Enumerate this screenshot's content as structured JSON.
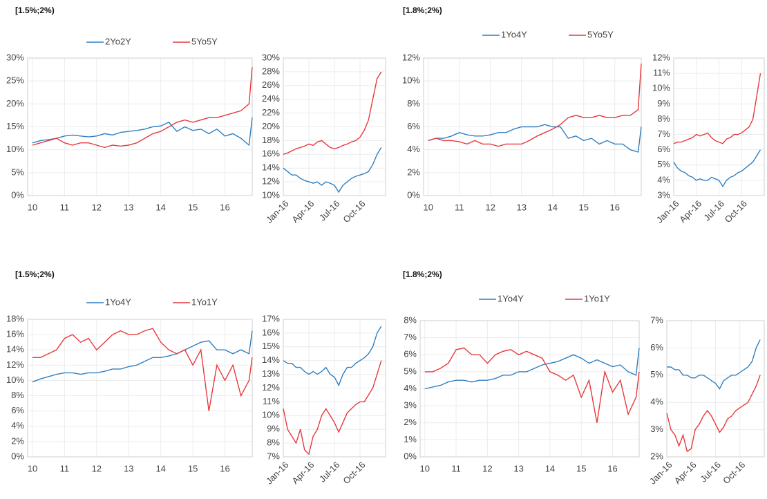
{
  "chart_data": [
    {
      "type": "line",
      "title": "[1.5%;2%)",
      "x": [
        10,
        10.25,
        10.5,
        10.75,
        11,
        11.25,
        11.5,
        11.75,
        12,
        12.25,
        12.5,
        12.75,
        13,
        13.25,
        13.5,
        13.75,
        14,
        14.25,
        14.5,
        14.75,
        15,
        15.25,
        15.5,
        15.75,
        16,
        16.25,
        16.5,
        16.75,
        16.85
      ],
      "xlim": [
        9.85,
        16.85
      ],
      "xticks": [
        10,
        11,
        12,
        13,
        14,
        15,
        16
      ],
      "ylim": [
        0,
        30
      ],
      "yticks": [
        {
          "value": 0,
          "label": "0%"
        },
        {
          "value": 5,
          "label": "5%"
        },
        {
          "value": 10,
          "label": "10%"
        },
        {
          "value": 15,
          "label": "15%"
        },
        {
          "value": 20,
          "label": "20%"
        },
        {
          "value": 25,
          "label": "25%"
        },
        {
          "value": 30,
          "label": "30%"
        }
      ],
      "grid": true,
      "series": [
        {
          "name": "2Yo2Y",
          "color": "#2e7fc1",
          "values": [
            11.5,
            12,
            12.2,
            12.5,
            13,
            13.2,
            13,
            12.8,
            13,
            13.5,
            13.2,
            13.8,
            14,
            14.2,
            14.5,
            15,
            15.2,
            16,
            14,
            15,
            14.2,
            14.5,
            13.5,
            14.5,
            13,
            13.5,
            12.5,
            11,
            17
          ]
        },
        {
          "name": "5Yo5Y",
          "color": "#e8373b",
          "values": [
            11,
            11.5,
            12,
            12.5,
            11.5,
            11,
            11.5,
            11.5,
            11,
            10.5,
            11,
            10.8,
            11,
            11.5,
            12.5,
            13.5,
            14,
            15,
            16,
            16.5,
            16,
            16.5,
            17,
            17,
            17.5,
            18,
            18.5,
            20,
            28
          ]
        }
      ]
    },
    {
      "type": "line",
      "x": [
        0,
        0.5,
        1,
        1.5,
        2,
        2.5,
        3,
        3.5,
        4,
        4.5,
        5,
        5.5,
        6,
        6.5,
        7,
        7.5,
        8,
        8.5,
        9,
        9.5,
        10,
        10.5,
        11,
        11.5
      ],
      "xlim": [
        0,
        12
      ],
      "xticks": [
        {
          "value": 0,
          "label": "Jan-16"
        },
        {
          "value": 3,
          "label": "Apr-16"
        },
        {
          "value": 6,
          "label": "Jul-16"
        },
        {
          "value": 9,
          "label": "Oct-16"
        }
      ],
      "ylim": [
        10,
        30
      ],
      "yticks": [
        {
          "value": 10,
          "label": "10%"
        },
        {
          "value": 12,
          "label": "12%"
        },
        {
          "value": 14,
          "label": "14%"
        },
        {
          "value": 16,
          "label": "16%"
        },
        {
          "value": 18,
          "label": "18%"
        },
        {
          "value": 20,
          "label": "20%"
        },
        {
          "value": 22,
          "label": "22%"
        },
        {
          "value": 24,
          "label": "24%"
        },
        {
          "value": 26,
          "label": "26%"
        },
        {
          "value": 28,
          "label": "28%"
        },
        {
          "value": 30,
          "label": "30%"
        }
      ],
      "grid": true,
      "series": [
        {
          "color": "#2e7fc1",
          "values": [
            14,
            13.5,
            13,
            13,
            12.5,
            12.2,
            12,
            11.8,
            12,
            11.5,
            12,
            11.8,
            11.5,
            10.5,
            11.5,
            12,
            12.5,
            12.8,
            13,
            13.2,
            13.5,
            14.5,
            16,
            17
          ]
        },
        {
          "color": "#e8373b",
          "values": [
            16,
            16.2,
            16.5,
            16.8,
            17,
            17.2,
            17.5,
            17.3,
            17.8,
            18,
            17.5,
            17,
            16.8,
            17,
            17.3,
            17.5,
            17.8,
            18,
            18.5,
            19.5,
            21,
            24,
            27,
            28
          ]
        }
      ]
    },
    {
      "type": "line",
      "title": "[1.8%;2%)",
      "x": [
        10,
        10.25,
        10.5,
        10.75,
        11,
        11.25,
        11.5,
        11.75,
        12,
        12.25,
        12.5,
        12.75,
        13,
        13.25,
        13.5,
        13.75,
        14,
        14.25,
        14.5,
        14.75,
        15,
        15.25,
        15.5,
        15.75,
        16,
        16.25,
        16.5,
        16.75,
        16.85
      ],
      "xlim": [
        9.85,
        16.85
      ],
      "xticks": [
        10,
        11,
        12,
        13,
        14,
        15,
        16
      ],
      "ylim": [
        0,
        12
      ],
      "yticks": [
        {
          "value": 0,
          "label": "0%"
        },
        {
          "value": 2,
          "label": "2%"
        },
        {
          "value": 4,
          "label": "4%"
        },
        {
          "value": 6,
          "label": "6%"
        },
        {
          "value": 8,
          "label": "8%"
        },
        {
          "value": 10,
          "label": "10%"
        },
        {
          "value": 12,
          "label": "12%"
        }
      ],
      "grid": true,
      "series": [
        {
          "name": "1Yo4Y",
          "color": "#2e7fc1",
          "values": [
            4.8,
            5,
            5,
            5.2,
            5.5,
            5.3,
            5.2,
            5.2,
            5.3,
            5.5,
            5.5,
            5.8,
            6,
            6,
            6,
            6.2,
            6,
            6,
            5,
            5.2,
            4.8,
            5,
            4.5,
            4.8,
            4.5,
            4.5,
            4,
            3.8,
            6
          ]
        },
        {
          "name": "5Yo5Y",
          "color": "#e8373b",
          "values": [
            4.8,
            5,
            4.8,
            4.8,
            4.7,
            4.5,
            4.8,
            4.5,
            4.5,
            4.3,
            4.5,
            4.5,
            4.5,
            4.8,
            5.2,
            5.5,
            5.8,
            6.2,
            6.8,
            7,
            6.8,
            6.8,
            7,
            6.8,
            6.8,
            7,
            7,
            7.5,
            11.5
          ]
        }
      ]
    },
    {
      "type": "line",
      "x": [
        0,
        0.5,
        1,
        1.5,
        2,
        2.5,
        3,
        3.5,
        4,
        4.5,
        5,
        5.5,
        6,
        6.5,
        7,
        7.5,
        8,
        8.5,
        9,
        9.5,
        10,
        10.5,
        11,
        11.5
      ],
      "xlim": [
        0,
        12
      ],
      "xticks": [
        {
          "value": 0,
          "label": "Jan-16"
        },
        {
          "value": 3,
          "label": "Apr-16"
        },
        {
          "value": 6,
          "label": "Jul-16"
        },
        {
          "value": 9,
          "label": "Oct-16"
        }
      ],
      "ylim": [
        3,
        12
      ],
      "yticks": [
        {
          "value": 3,
          "label": "3%"
        },
        {
          "value": 4,
          "label": "4%"
        },
        {
          "value": 5,
          "label": "5%"
        },
        {
          "value": 6,
          "label": "6%"
        },
        {
          "value": 7,
          "label": "7%"
        },
        {
          "value": 8,
          "label": "8%"
        },
        {
          "value": 9,
          "label": "9%"
        },
        {
          "value": 10,
          "label": "10%"
        },
        {
          "value": 11,
          "label": "11%"
        },
        {
          "value": 12,
          "label": "12%"
        }
      ],
      "grid": true,
      "series": [
        {
          "color": "#2e7fc1",
          "values": [
            5.2,
            4.8,
            4.6,
            4.5,
            4.3,
            4.2,
            4,
            4.1,
            4,
            4,
            4.2,
            4.1,
            4,
            3.6,
            4,
            4.2,
            4.3,
            4.5,
            4.6,
            4.8,
            5,
            5.2,
            5.6,
            6
          ]
        },
        {
          "color": "#e8373b",
          "values": [
            6.4,
            6.5,
            6.5,
            6.6,
            6.7,
            6.8,
            7,
            6.9,
            7,
            7.1,
            6.8,
            6.6,
            6.5,
            6.4,
            6.7,
            6.8,
            7,
            7,
            7.1,
            7.3,
            7.5,
            8,
            9.5,
            11
          ]
        }
      ]
    },
    {
      "type": "line",
      "title": "[1.5%;2%)",
      "x": [
        10,
        10.25,
        10.5,
        10.75,
        11,
        11.25,
        11.5,
        11.75,
        12,
        12.25,
        12.5,
        12.75,
        13,
        13.25,
        13.5,
        13.75,
        14,
        14.25,
        14.5,
        14.75,
        15,
        15.25,
        15.5,
        15.75,
        16,
        16.25,
        16.5,
        16.75,
        16.85
      ],
      "xlim": [
        9.85,
        16.85
      ],
      "xticks": [
        10,
        11,
        12,
        13,
        14,
        15,
        16
      ],
      "ylim": [
        0,
        18
      ],
      "yticks": [
        {
          "value": 0,
          "label": "0%"
        },
        {
          "value": 2,
          "label": "2%"
        },
        {
          "value": 4,
          "label": "4%"
        },
        {
          "value": 6,
          "label": "6%"
        },
        {
          "value": 8,
          "label": "8%"
        },
        {
          "value": 10,
          "label": "10%"
        },
        {
          "value": 12,
          "label": "12%"
        },
        {
          "value": 14,
          "label": "14%"
        },
        {
          "value": 16,
          "label": "16%"
        },
        {
          "value": 18,
          "label": "18%"
        }
      ],
      "grid": true,
      "series": [
        {
          "name": "1Yo4Y",
          "color": "#2e7fc1",
          "values": [
            9.8,
            10.2,
            10.5,
            10.8,
            11,
            11,
            10.8,
            11,
            11,
            11.2,
            11.5,
            11.5,
            11.8,
            12,
            12.5,
            13,
            13,
            13.2,
            13.5,
            14,
            14.5,
            15,
            15.2,
            14,
            14,
            13.5,
            14,
            13.5,
            16.5
          ]
        },
        {
          "name": "1Yo1Y",
          "color": "#e8373b",
          "values": [
            13,
            13,
            13.5,
            14,
            15.5,
            16,
            15,
            15.5,
            14,
            15,
            16,
            16.5,
            16,
            16,
            16.5,
            16.8,
            15,
            14,
            13.5,
            14,
            12,
            14,
            6,
            12,
            10,
            12,
            8,
            10,
            13
          ]
        }
      ]
    },
    {
      "type": "line",
      "x": [
        0,
        0.5,
        1,
        1.5,
        2,
        2.5,
        3,
        3.5,
        4,
        4.5,
        5,
        5.5,
        6,
        6.5,
        7,
        7.5,
        8,
        8.5,
        9,
        9.5,
        10,
        10.5,
        11,
        11.5
      ],
      "xlim": [
        0,
        12
      ],
      "xticks": [
        {
          "value": 0,
          "label": "Jan-16"
        },
        {
          "value": 3,
          "label": "Apr-16"
        },
        {
          "value": 6,
          "label": "Jul-16"
        },
        {
          "value": 9,
          "label": "Oct-16"
        }
      ],
      "ylim": [
        7,
        17
      ],
      "yticks": [
        {
          "value": 7,
          "label": "7%"
        },
        {
          "value": 8,
          "label": "8%"
        },
        {
          "value": 9,
          "label": "9%"
        },
        {
          "value": 10,
          "label": "10%"
        },
        {
          "value": 11,
          "label": "11%"
        },
        {
          "value": 12,
          "label": "12%"
        },
        {
          "value": 13,
          "label": "13%"
        },
        {
          "value": 14,
          "label": "14%"
        },
        {
          "value": 15,
          "label": "15%"
        },
        {
          "value": 16,
          "label": "16%"
        },
        {
          "value": 17,
          "label": "17%"
        }
      ],
      "grid": true,
      "series": [
        {
          "color": "#2e7fc1",
          "values": [
            14,
            13.8,
            13.8,
            13.5,
            13.5,
            13.2,
            13,
            13.2,
            13,
            13.2,
            13.5,
            13,
            12.8,
            12.2,
            13,
            13.5,
            13.5,
            13.8,
            14,
            14.2,
            14.5,
            15,
            16,
            16.5
          ]
        },
        {
          "color": "#e8373b",
          "values": [
            10.5,
            9,
            8.5,
            8,
            9,
            7.5,
            7.2,
            8.5,
            9,
            10,
            10.5,
            10,
            9.5,
            8.8,
            9.5,
            10.2,
            10.5,
            10.8,
            11,
            11,
            11.5,
            12,
            13,
            14
          ]
        }
      ]
    },
    {
      "type": "line",
      "title": "[1.8%;2%)",
      "x": [
        10,
        10.25,
        10.5,
        10.75,
        11,
        11.25,
        11.5,
        11.75,
        12,
        12.25,
        12.5,
        12.75,
        13,
        13.25,
        13.5,
        13.75,
        14,
        14.25,
        14.5,
        14.75,
        15,
        15.25,
        15.5,
        15.75,
        16,
        16.25,
        16.5,
        16.75,
        16.85
      ],
      "xlim": [
        9.85,
        16.85
      ],
      "xticks": [
        10,
        11,
        12,
        13,
        14,
        15,
        16
      ],
      "ylim": [
        0,
        8
      ],
      "yticks": [
        {
          "value": 0,
          "label": "0%"
        },
        {
          "value": 1,
          "label": "1%"
        },
        {
          "value": 2,
          "label": "2%"
        },
        {
          "value": 3,
          "label": "3%"
        },
        {
          "value": 4,
          "label": "4%"
        },
        {
          "value": 5,
          "label": "5%"
        },
        {
          "value": 6,
          "label": "6%"
        },
        {
          "value": 7,
          "label": "7%"
        },
        {
          "value": 8,
          "label": "8%"
        }
      ],
      "grid": true,
      "series": [
        {
          "name": "1Yo4Y",
          "color": "#2e7fc1",
          "values": [
            4,
            4.1,
            4.2,
            4.4,
            4.5,
            4.5,
            4.4,
            4.5,
            4.5,
            4.6,
            4.8,
            4.8,
            5,
            5,
            5.2,
            5.4,
            5.5,
            5.6,
            5.8,
            6,
            5.8,
            5.5,
            5.7,
            5.5,
            5.3,
            5.4,
            5,
            4.8,
            6.4
          ]
        },
        {
          "name": "1Yo1Y",
          "color": "#e8373b",
          "values": [
            5,
            5,
            5.2,
            5.5,
            6.3,
            6.4,
            6,
            6,
            5.5,
            6,
            6.2,
            6.3,
            6,
            6.2,
            6,
            5.8,
            5,
            4.8,
            4.5,
            4.8,
            3.5,
            4.5,
            2,
            5,
            3.8,
            4.5,
            2.5,
            3.5,
            5
          ]
        }
      ]
    },
    {
      "type": "line",
      "x": [
        0,
        0.5,
        1,
        1.5,
        2,
        2.5,
        3,
        3.5,
        4,
        4.5,
        5,
        5.5,
        6,
        6.5,
        7,
        7.5,
        8,
        8.5,
        9,
        9.5,
        10,
        10.5,
        11,
        11.5
      ],
      "xlim": [
        0,
        12
      ],
      "xticks": [
        {
          "value": 0,
          "label": "Jan-16"
        },
        {
          "value": 3,
          "label": "Apr-16"
        },
        {
          "value": 6,
          "label": "Jul-16"
        },
        {
          "value": 9,
          "label": "Oct-16"
        }
      ],
      "ylim": [
        2,
        7
      ],
      "yticks": [
        {
          "value": 2,
          "label": "2%"
        },
        {
          "value": 3,
          "label": "3%"
        },
        {
          "value": 4,
          "label": "4%"
        },
        {
          "value": 5,
          "label": "5%"
        },
        {
          "value": 6,
          "label": "6%"
        },
        {
          "value": 7,
          "label": "7%"
        }
      ],
      "grid": true,
      "series": [
        {
          "color": "#2e7fc1",
          "values": [
            5.3,
            5.3,
            5.2,
            5.2,
            5,
            5,
            4.9,
            4.9,
            5,
            5,
            4.9,
            4.8,
            4.7,
            4.5,
            4.8,
            4.9,
            5,
            5,
            5.1,
            5.2,
            5.3,
            5.5,
            6,
            6.3
          ]
        },
        {
          "color": "#e8373b",
          "values": [
            3.6,
            3,
            2.8,
            2.4,
            2.8,
            2.2,
            2.3,
            3,
            3.2,
            3.5,
            3.7,
            3.5,
            3.2,
            2.9,
            3.1,
            3.4,
            3.5,
            3.7,
            3.8,
            3.9,
            4,
            4.3,
            4.6,
            5
          ]
        }
      ]
    }
  ]
}
